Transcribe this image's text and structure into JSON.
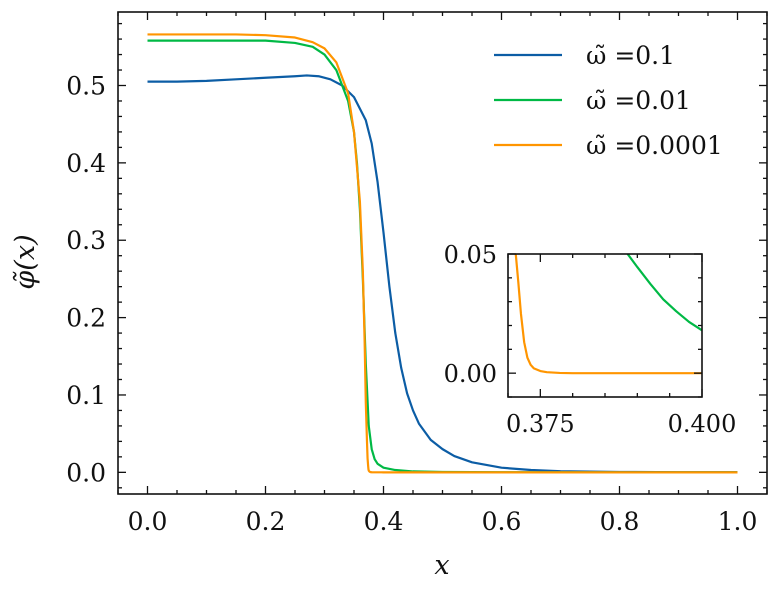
{
  "chart_data": {
    "type": "line",
    "title": "",
    "xlabel": "x",
    "ylabel": "φ̃(x)",
    "xlim": [
      -0.05,
      1.05
    ],
    "ylim": [
      -0.028,
      0.595
    ],
    "xticks": [
      0.0,
      0.2,
      0.4,
      0.6,
      0.8,
      1.0
    ],
    "xtick_labels": [
      "0.0",
      "0.2",
      "0.4",
      "0.6",
      "0.8",
      "1.0"
    ],
    "yticks": [
      0.0,
      0.1,
      0.2,
      0.3,
      0.4,
      0.5
    ],
    "ytick_labels": [
      "0.0",
      "0.1",
      "0.2",
      "0.3",
      "0.4",
      "0.5"
    ],
    "legend_position": "top-right",
    "grid": false,
    "series": [
      {
        "name": "ω̃ =0.1",
        "color": "#0C5DA5",
        "x": [
          0.0,
          0.05,
          0.1,
          0.15,
          0.2,
          0.25,
          0.27,
          0.29,
          0.31,
          0.33,
          0.35,
          0.37,
          0.38,
          0.39,
          0.4,
          0.41,
          0.42,
          0.43,
          0.44,
          0.45,
          0.46,
          0.48,
          0.5,
          0.52,
          0.55,
          0.6,
          0.65,
          0.7,
          0.8,
          0.9,
          1.0
        ],
        "y": [
          0.505,
          0.505,
          0.506,
          0.508,
          0.51,
          0.512,
          0.513,
          0.512,
          0.508,
          0.5,
          0.485,
          0.455,
          0.425,
          0.375,
          0.31,
          0.24,
          0.18,
          0.135,
          0.102,
          0.08,
          0.063,
          0.042,
          0.03,
          0.021,
          0.013,
          0.006,
          0.003,
          0.0015,
          0.0005,
          0.0002,
          0.0001
        ]
      },
      {
        "name": "ω̃ =0.01",
        "color": "#00B945",
        "x": [
          0.0,
          0.05,
          0.1,
          0.15,
          0.2,
          0.25,
          0.28,
          0.3,
          0.32,
          0.34,
          0.35,
          0.355,
          0.36,
          0.365,
          0.37,
          0.375,
          0.38,
          0.385,
          0.39,
          0.4,
          0.42,
          0.45,
          0.5,
          0.6,
          0.8,
          1.0
        ],
        "y": [
          0.558,
          0.558,
          0.558,
          0.558,
          0.558,
          0.555,
          0.55,
          0.54,
          0.52,
          0.48,
          0.44,
          0.4,
          0.34,
          0.25,
          0.14,
          0.06,
          0.03,
          0.017,
          0.011,
          0.006,
          0.003,
          0.0012,
          0.0004,
          0.0001,
          0.0,
          0.0
        ]
      },
      {
        "name": "ω̃ =0.0001",
        "color": "#FF9500",
        "x": [
          0.0,
          0.05,
          0.1,
          0.15,
          0.2,
          0.25,
          0.28,
          0.3,
          0.32,
          0.34,
          0.35,
          0.36,
          0.365,
          0.368,
          0.37,
          0.372,
          0.373,
          0.374,
          0.3745,
          0.375,
          0.376,
          0.377,
          0.378,
          0.38,
          0.4,
          0.5,
          0.7,
          1.0
        ],
        "y": [
          0.566,
          0.566,
          0.566,
          0.566,
          0.565,
          0.562,
          0.556,
          0.548,
          0.53,
          0.49,
          0.44,
          0.35,
          0.26,
          0.17,
          0.09,
          0.04,
          0.018,
          0.008,
          0.004,
          0.0022,
          0.0012,
          0.0006,
          0.0003,
          0.0001,
          0.0,
          0.0,
          0.0,
          0.0
        ]
      }
    ],
    "inset": {
      "type": "line",
      "xlim": [
        0.37,
        0.4
      ],
      "ylim": [
        -0.01,
        0.05
      ],
      "xticks": [
        0.375,
        0.4
      ],
      "xtick_labels": [
        "0.375",
        "0.400"
      ],
      "yticks": [
        0.0,
        0.05
      ],
      "ytick_labels": [
        "0.00",
        "0.05"
      ],
      "series": [
        {
          "name": "ω̃ =0.01",
          "color": "#00B945",
          "x": [
            0.3885,
            0.39,
            0.392,
            0.394,
            0.396,
            0.398,
            0.4
          ],
          "y": [
            0.05,
            0.0445,
            0.0375,
            0.031,
            0.026,
            0.0215,
            0.018
          ]
        },
        {
          "name": "ω̃ =0.0001",
          "color": "#FF9500",
          "x": [
            0.3712,
            0.3716,
            0.372,
            0.3725,
            0.373,
            0.3735,
            0.374,
            0.375,
            0.376,
            0.378,
            0.38,
            0.39,
            0.4
          ],
          "y": [
            0.05,
            0.038,
            0.025,
            0.013,
            0.0065,
            0.0035,
            0.002,
            0.0009,
            0.0004,
            0.0001,
            0.0,
            0.0,
            0.0
          ]
        }
      ]
    }
  }
}
